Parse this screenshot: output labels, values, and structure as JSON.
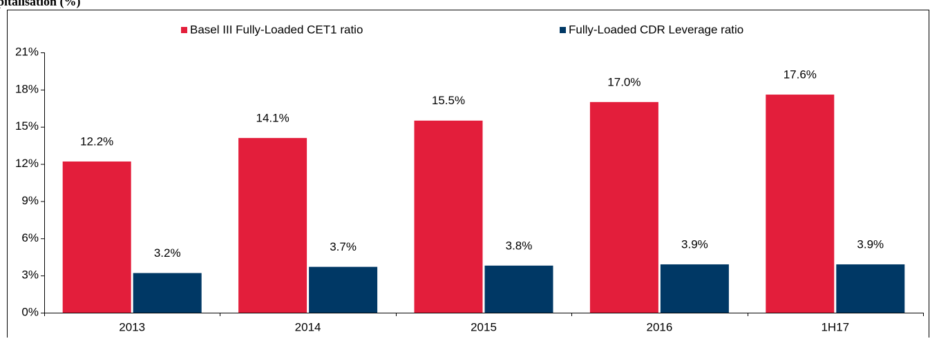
{
  "chart_data": {
    "type": "bar",
    "title": "pitalisation (%)",
    "categories": [
      "2013",
      "2014",
      "2015",
      "2016",
      "1H17"
    ],
    "series": [
      {
        "name": "Basel III Fully-Loaded CET1 ratio",
        "color": "#e31e3b",
        "values": [
          12.2,
          14.1,
          15.5,
          17.0,
          17.6
        ],
        "value_labels": [
          "12.2%",
          "14.1%",
          "15.5%",
          "17.0%",
          "17.6%"
        ]
      },
      {
        "name": "Fully-Loaded CDR Leverage ratio",
        "color": "#003865",
        "values": [
          3.2,
          3.7,
          3.8,
          3.9,
          3.9
        ],
        "value_labels": [
          "3.2%",
          "3.7%",
          "3.8%",
          "3.9%",
          "3.9%"
        ]
      }
    ],
    "ylim": [
      0,
      21
    ],
    "yticks": [
      {
        "value": 0,
        "label": "0%"
      },
      {
        "value": 3,
        "label": "3%"
      },
      {
        "value": 6,
        "label": "6%"
      },
      {
        "value": 9,
        "label": "9%"
      },
      {
        "value": 12,
        "label": "12%"
      },
      {
        "value": 15,
        "label": "15%"
      },
      {
        "value": 18,
        "label": "18%"
      },
      {
        "value": 21,
        "label": "21%"
      }
    ],
    "legend": "top",
    "grid": false
  }
}
